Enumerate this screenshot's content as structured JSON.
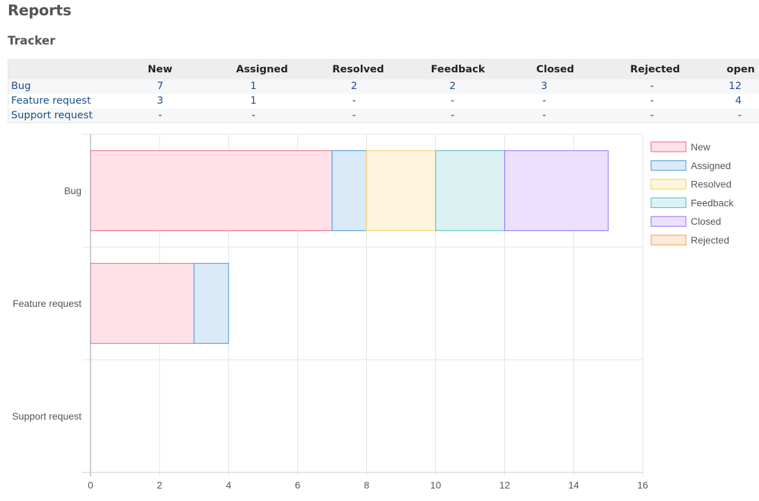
{
  "page": {
    "title": "Reports",
    "section": "Tracker"
  },
  "table": {
    "corner": "",
    "columns": [
      "New",
      "Assigned",
      "Resolved",
      "Feedback",
      "Closed",
      "Rejected",
      "open"
    ],
    "rows": [
      {
        "name": "Bug",
        "cells": [
          "7",
          "1",
          "2",
          "2",
          "3",
          "-",
          "12"
        ]
      },
      {
        "name": "Feature request",
        "cells": [
          "3",
          "1",
          "-",
          "-",
          "-",
          "-",
          "4"
        ]
      },
      {
        "name": "Support request",
        "cells": [
          "-",
          "-",
          "-",
          "-",
          "-",
          "-",
          "-"
        ]
      }
    ]
  },
  "colors": {
    "New": {
      "fill": "#ffe1e7",
      "stroke": "#f1778f"
    },
    "Assigned": {
      "fill": "#daeaf8",
      "stroke": "#56a3e0"
    },
    "Resolved": {
      "fill": "#fff4dc",
      "stroke": "#fdd272"
    },
    "Feedback": {
      "fill": "#dcf2f2",
      "stroke": "#5fc4c4"
    },
    "Closed": {
      "fill": "#ebe0fe",
      "stroke": "#a27efb"
    },
    "Rejected": {
      "fill": "#ffead9",
      "stroke": "#fca55a"
    }
  },
  "chart_data": {
    "type": "bar",
    "orientation": "horizontal",
    "stacked": true,
    "categories": [
      "Bug",
      "Feature request",
      "Support request"
    ],
    "series": [
      {
        "name": "New",
        "values": [
          7,
          3,
          0
        ]
      },
      {
        "name": "Assigned",
        "values": [
          1,
          1,
          0
        ]
      },
      {
        "name": "Resolved",
        "values": [
          2,
          0,
          0
        ]
      },
      {
        "name": "Feedback",
        "values": [
          2,
          0,
          0
        ]
      },
      {
        "name": "Closed",
        "values": [
          3,
          0,
          0
        ]
      },
      {
        "name": "Rejected",
        "values": [
          0,
          0,
          0
        ]
      }
    ],
    "xticks": [
      0,
      2,
      4,
      6,
      8,
      10,
      12,
      14,
      16
    ],
    "xlim": [
      0,
      16
    ],
    "grid": true,
    "legend": "right"
  }
}
